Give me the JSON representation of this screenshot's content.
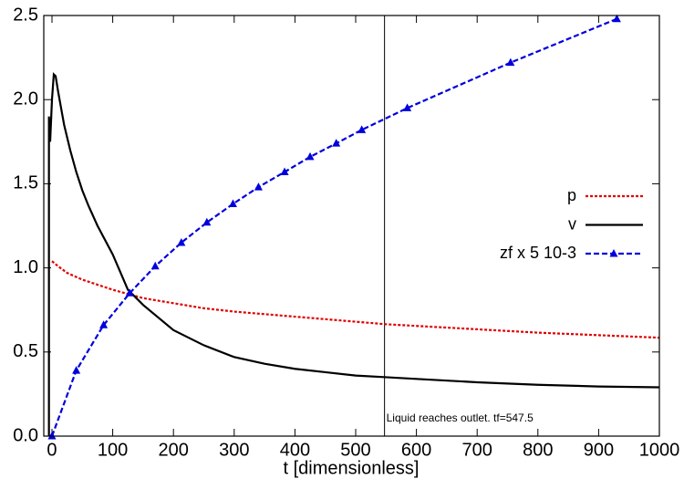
{
  "chart_data": {
    "type": "line",
    "xlabel": "t [dimensionless]",
    "xlim": [
      -13.5,
      1000
    ],
    "ylim": [
      0,
      2.5
    ],
    "xticks": [
      0,
      100,
      200,
      300,
      400,
      500,
      600,
      700,
      800,
      900,
      1000
    ],
    "yticks": [
      {
        "value": 0,
        "label": "0.0"
      },
      {
        "value": 0.5,
        "label": "0.5"
      },
      {
        "value": 1,
        "label": "1.0"
      },
      {
        "value": 1.5,
        "label": "1.5"
      },
      {
        "value": 2,
        "label": "2.0"
      },
      {
        "value": 2.5,
        "label": "2.5"
      }
    ],
    "legend": "right",
    "annotation": {
      "text": "Liquid reaches outlet. tf=547.5",
      "x": 547.5
    },
    "series": [
      {
        "name": "p",
        "color": "#e00000",
        "linestyle": "dotted",
        "x": [
          0,
          10,
          25,
          50,
          75,
          100,
          150,
          200,
          250,
          300,
          400,
          500,
          550,
          600,
          700,
          800,
          900,
          1000
        ],
        "values": [
          1.04,
          1.01,
          0.97,
          0.93,
          0.9,
          0.87,
          0.82,
          0.79,
          0.76,
          0.74,
          0.71,
          0.68,
          0.665,
          0.655,
          0.635,
          0.615,
          0.6,
          0.585
        ]
      },
      {
        "name": "v",
        "color": "#000000",
        "linestyle": "solid",
        "x": [
          -5,
          -5,
          -3,
          0,
          3,
          6,
          10,
          20,
          30,
          40,
          50,
          60,
          75,
          100,
          125,
          150,
          200,
          250,
          300,
          350,
          400,
          450,
          500,
          550,
          600,
          700,
          800,
          900,
          1000
        ],
        "values": [
          0,
          1.9,
          1.75,
          2.0,
          2.15,
          2.14,
          2.05,
          1.85,
          1.7,
          1.57,
          1.46,
          1.37,
          1.25,
          1.08,
          0.87,
          0.78,
          0.63,
          0.54,
          0.47,
          0.43,
          0.4,
          0.38,
          0.36,
          0.35,
          0.34,
          0.32,
          0.305,
          0.295,
          0.29
        ]
      },
      {
        "name": "zf x 5 10-3",
        "color": "#0000dd",
        "linestyle": "dashed",
        "marker": "triangle",
        "x": [
          0,
          40,
          85,
          128,
          170,
          213,
          255,
          298,
          340,
          383,
          425,
          468,
          510,
          585,
          755,
          930
        ],
        "values": [
          0,
          0.39,
          0.66,
          0.85,
          1.01,
          1.15,
          1.27,
          1.38,
          1.48,
          1.57,
          1.66,
          1.74,
          1.82,
          1.95,
          2.22,
          2.48
        ]
      }
    ]
  }
}
